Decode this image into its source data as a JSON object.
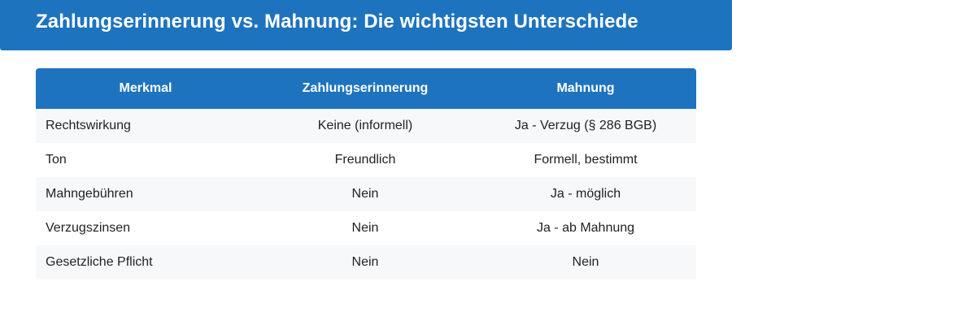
{
  "header": {
    "title": "Zahlungserinnerung vs. Mahnung: Die wichtigsten Unterschiede"
  },
  "table": {
    "columns": [
      "Merkmal",
      "Zahlungserinnerung",
      "Mahnung"
    ],
    "rows": [
      [
        "Rechtswirkung",
        "Keine (informell)",
        "Ja - Verzug (§ 286 BGB)"
      ],
      [
        "Ton",
        "Freundlich",
        "Formell, bestimmt"
      ],
      [
        "Mahngebühren",
        "Nein",
        "Ja - möglich"
      ],
      [
        "Verzugszinsen",
        "Nein",
        "Ja - ab Mahnung"
      ],
      [
        "Gesetzliche Pflicht",
        "Nein",
        "Nein"
      ]
    ]
  },
  "colors": {
    "accent": "#1e73be",
    "row_stripe": "#f7f8fa",
    "text": "#222222"
  }
}
